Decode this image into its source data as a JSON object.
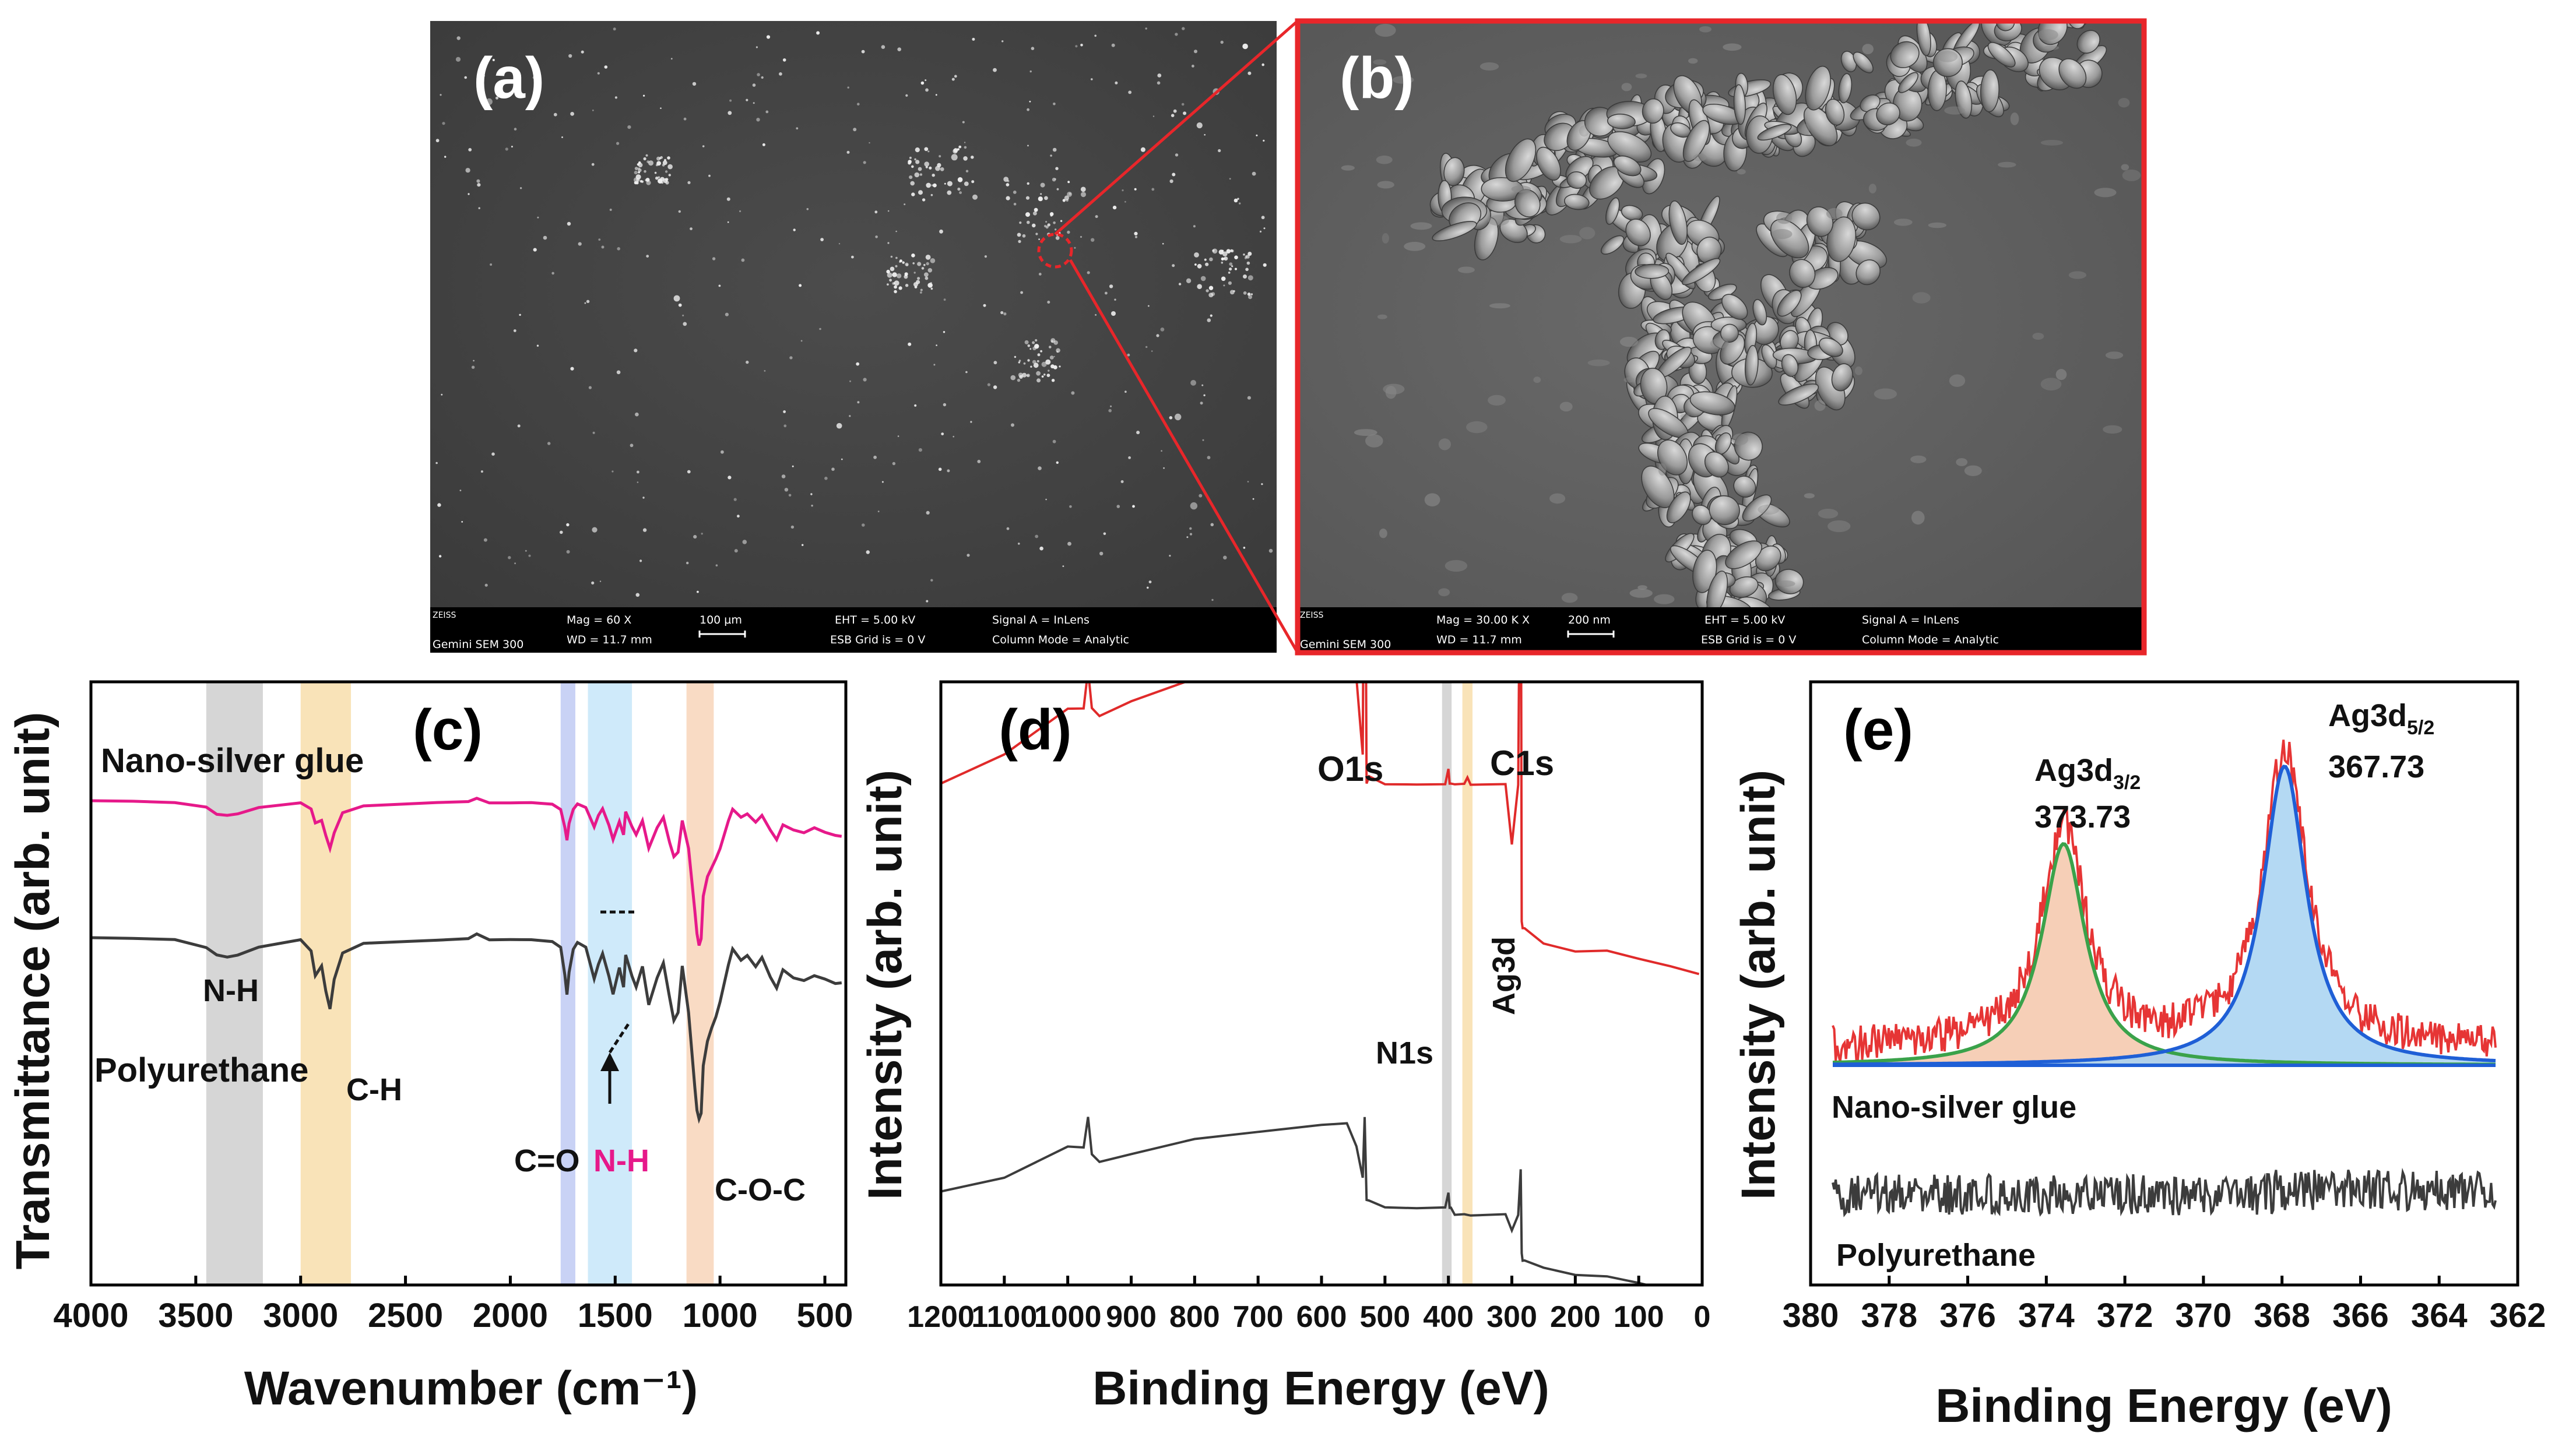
{
  "figure_panels": {
    "a": {
      "label": "(a)",
      "caption_bar": {
        "logo": "ZEISS",
        "instrument": "Gemini SEM 300",
        "mag": "Mag =   60 X",
        "wd": "WD = 11.7 mm",
        "scale": "100 µm",
        "eht": "EHT =  5.00 kV",
        "esb": "ESB Grid is =    0  V",
        "signal": "Signal A = InLens",
        "column": "Column Mode = Analytic"
      }
    },
    "b": {
      "label": "(b)",
      "caption_bar": {
        "logo": "ZEISS",
        "instrument": "Gemini SEM 300",
        "mag": "Mag =   30.00 K X",
        "wd": "WD = 11.7 mm",
        "scale": "200 nm",
        "eht": "EHT =  5.00 kV",
        "esb": "ESB Grid is =    0  V",
        "signal": "Signal A = InLens",
        "column": "Column Mode = Analytic"
      }
    }
  },
  "chart_data": [
    {
      "panel": "(c)",
      "type": "line",
      "xlabel": "Wavenumber (cm⁻¹)",
      "ylabel": "Transmittance (arb. unit)",
      "xlim": [
        4000,
        400
      ],
      "xticks": [
        "4000",
        "3500",
        "3000",
        "2500",
        "2000",
        "1500",
        "1000",
        "500"
      ],
      "series": [
        {
          "name": "Nano-silver glue",
          "color": "#e6198a",
          "x": [
            4000,
            3800,
            3600,
            3450,
            3400,
            3350,
            3300,
            3200,
            3000,
            2950,
            2930,
            2900,
            2880,
            2860,
            2840,
            2800,
            2700,
            2500,
            2350,
            2200,
            2160,
            2100,
            2000,
            1900,
            1800,
            1760,
            1740,
            1730,
            1720,
            1700,
            1680,
            1640,
            1600,
            1580,
            1560,
            1530,
            1510,
            1480,
            1460,
            1450,
            1420,
            1400,
            1370,
            1340,
            1300,
            1270,
            1240,
            1220,
            1200,
            1180,
            1150,
            1120,
            1110,
            1100,
            1090,
            1080,
            1060,
            1040,
            1020,
            1000,
            960,
            940,
            900,
            870,
            830,
            800,
            760,
            730,
            700,
            650,
            600,
            550,
            500,
            450,
            420
          ],
          "y": [
            100,
            100,
            99,
            96,
            92,
            91,
            92,
            96,
            99,
            95,
            86,
            88,
            78,
            70,
            80,
            93,
            97,
            98,
            99,
            100,
            102,
            99,
            99,
            99,
            98,
            95,
            83,
            75,
            86,
            95,
            98,
            96,
            84,
            91,
            95,
            85,
            76,
            87,
            79,
            93,
            84,
            79,
            88,
            70,
            83,
            90,
            74,
            65,
            68,
            88,
            70,
            30,
            16,
            8,
            13,
            40,
            52,
            58,
            63,
            70,
            88,
            95,
            90,
            92,
            87,
            91,
            82,
            76,
            85,
            82,
            80,
            83,
            80,
            78,
            78
          ]
        },
        {
          "name": "Polyurethane",
          "color": "#3c3c3c",
          "x": [
            4000,
            3800,
            3600,
            3450,
            3400,
            3350,
            3300,
            3200,
            3000,
            2950,
            2930,
            2900,
            2880,
            2860,
            2840,
            2800,
            2700,
            2500,
            2350,
            2200,
            2160,
            2100,
            2000,
            1900,
            1800,
            1760,
            1740,
            1730,
            1720,
            1700,
            1680,
            1640,
            1600,
            1580,
            1560,
            1530,
            1510,
            1480,
            1460,
            1450,
            1420,
            1400,
            1370,
            1340,
            1300,
            1270,
            1240,
            1220,
            1200,
            1180,
            1150,
            1120,
            1110,
            1100,
            1090,
            1080,
            1060,
            1040,
            1020,
            1000,
            960,
            940,
            900,
            870,
            830,
            800,
            760,
            730,
            700,
            650,
            600,
            550,
            500,
            450,
            420
          ],
          "y": [
            100,
            100,
            99,
            95,
            91,
            90,
            91,
            95,
            99,
            93,
            80,
            85,
            72,
            62,
            78,
            92,
            97,
            98,
            99,
            100,
            102,
            99,
            99,
            99,
            98,
            95,
            80,
            70,
            82,
            94,
            98,
            95,
            78,
            86,
            92,
            80,
            70,
            84,
            74,
            91,
            80,
            74,
            85,
            64,
            79,
            87,
            68,
            56,
            60,
            85,
            60,
            20,
            8,
            3,
            6,
            32,
            45,
            52,
            58,
            66,
            86,
            94,
            88,
            91,
            85,
            90,
            79,
            73,
            83,
            79,
            77,
            80,
            78,
            76,
            76
          ]
        }
      ],
      "shaded_bands": [
        {
          "from": 3450,
          "to": 3180,
          "color": "#c8c8c8"
        },
        {
          "from": 3000,
          "to": 2760,
          "color": "#f7d9a0"
        },
        {
          "from": 1760,
          "to": 1690,
          "color": "#b7c3f2"
        },
        {
          "from": 1630,
          "to": 1420,
          "color": "#bfe3f8"
        },
        {
          "from": 1160,
          "to": 1030,
          "color": "#f7cfb0"
        }
      ],
      "annotations": {
        "nano_label": "Nano-silver glue",
        "pu_label": "Polyurethane",
        "nh": "N-H",
        "ch": "C-H",
        "co": "C=O",
        "nh2": "N-H",
        "coc": "C-O-C"
      }
    },
    {
      "panel": "(d)",
      "type": "line",
      "xlabel": "Binding Energy (eV)",
      "ylabel": "Intensity (arb. unit)",
      "xlim": [
        1200,
        0
      ],
      "xticks": [
        "1200",
        "1100",
        "1000",
        "900",
        "800",
        "700",
        "600",
        "500",
        "400",
        "300",
        "200",
        "100",
        "0"
      ],
      "series": [
        {
          "name": "Nano-silver glue",
          "color": "#e02a2a",
          "x": [
            1200,
            1100,
            1000,
            975,
            968,
            962,
            950,
            900,
            800,
            700,
            600,
            560,
            545,
            535,
            532,
            529,
            525,
            500,
            450,
            405,
            400,
            398,
            396,
            390,
            375,
            370,
            365,
            310,
            300,
            290,
            286,
            284.5,
            283,
            280,
            250,
            200,
            150,
            100,
            50,
            5
          ],
          "y": [
            44,
            48,
            54,
            54,
            59,
            54,
            53,
            55,
            58,
            60,
            62,
            64,
            58,
            48,
            98,
            44,
            45,
            44,
            44,
            44,
            46,
            44,
            44,
            44,
            44,
            45,
            44,
            44,
            36,
            44,
            90,
            26,
            25,
            25,
            23,
            22,
            22,
            21,
            20,
            19
          ]
        },
        {
          "name": "Polyurethane",
          "color": "#3c3c3c",
          "x": [
            1200,
            1100,
            1000,
            975,
            968,
            962,
            950,
            900,
            800,
            700,
            600,
            560,
            545,
            535,
            532,
            529,
            525,
            500,
            450,
            405,
            400,
            398,
            396,
            390,
            375,
            370,
            365,
            310,
            300,
            290,
            286,
            284.5,
            283,
            280,
            250,
            200,
            150,
            100,
            50,
            5
          ],
          "y": [
            8,
            10,
            14,
            14,
            18,
            13,
            12,
            13,
            15,
            16,
            17,
            17,
            14,
            10,
            18,
            7,
            7,
            6,
            6,
            6,
            8,
            6,
            6,
            5,
            5,
            5,
            5,
            5,
            3,
            5,
            11,
            0,
            -1,
            -1,
            -2,
            -3,
            -3,
            -4,
            -5,
            -5
          ]
        }
      ],
      "shaded_bands": [
        {
          "from": 410,
          "to": 395,
          "color": "#c8c8c8"
        },
        {
          "from": 378,
          "to": 362,
          "color": "#f7d9a0"
        }
      ],
      "annotations": {
        "o1s": "O1s",
        "c1s": "C1s",
        "n1s": "N1s",
        "ag3d": "Ag3d"
      }
    },
    {
      "panel": "(e)",
      "type": "line",
      "xlabel": "Binding Energy (eV)",
      "ylabel": "Intensity (arb. unit)",
      "xlim": [
        380,
        362
      ],
      "xticks": [
        "380",
        "378",
        "376",
        "374",
        "372",
        "370",
        "368",
        "366",
        "364",
        "362"
      ],
      "peaks": [
        {
          "name": "Ag3d3/2",
          "center": 373.73,
          "height": 1.0,
          "fill": "#f4c7aa",
          "line": "#3aa24a",
          "label": "Ag3d",
          "sub": "3/2",
          "value": "373.73"
        },
        {
          "name": "Ag3d5/2",
          "center": 367.73,
          "height": 1.35,
          "fill": "#a7d2f1",
          "line": "#1f5fd6",
          "label": "Ag3d",
          "sub": "5/2",
          "value": "367.73"
        }
      ],
      "series": [
        {
          "name": "Nano-silver glue",
          "color": "#e63535"
        },
        {
          "name": "Polyurethane",
          "color": "#3c3c3c"
        }
      ],
      "annotations": {
        "nano_label": "Nano-silver glue",
        "pu_label": "Polyurethane"
      }
    }
  ]
}
